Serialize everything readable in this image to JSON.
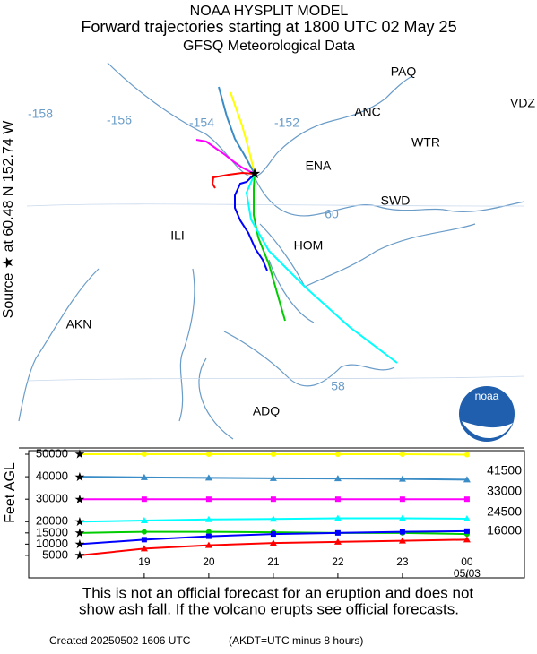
{
  "header": {
    "lines": [
      "NOAA HYSPLIT MODEL",
      "Forward trajectories starting at 1800 UTC 02 May 25",
      "GFSQ Meteorological Data"
    ]
  },
  "side_label": "Source ★ at 60.48 N 152.74 W",
  "map": {
    "places": [
      "PAQ",
      "ANC",
      "VDZ",
      "WTR",
      "ENA",
      "SWD",
      "ILI",
      "HOM",
      "AKN",
      "ADQ"
    ],
    "lon_labels": [
      "-158",
      "-156",
      "-154",
      "-152"
    ],
    "lat_labels": [
      "60",
      "58"
    ],
    "logo": "noaa"
  },
  "chart_data": {
    "type": "line",
    "y_label": "Feet AGL",
    "x": [
      18,
      19,
      20,
      21,
      22,
      23,
      24
    ],
    "xlim": [
      17.21,
      24.89
    ],
    "xticks": [
      19,
      20,
      21,
      22,
      23,
      {
        "value": 24,
        "label": "00"
      }
    ],
    "x_date_label": "05/03",
    "ylim": [
      -5000,
      51600
    ],
    "yticks": [
      5000,
      10000,
      15000,
      20000,
      30000,
      40000,
      50000
    ],
    "right_labels": [
      "41500",
      "33000",
      "24500",
      "16000"
    ],
    "series": [
      {
        "color": "#ffff00",
        "marker": "circle",
        "values": [
          50000,
          50000,
          50000,
          50000,
          50000,
          50000,
          49800
        ]
      },
      {
        "color": "#3a8cc6",
        "marker": "triangle",
        "values": [
          40000,
          39700,
          39500,
          39300,
          39200,
          39000,
          38700
        ]
      },
      {
        "color": "#ff00ff",
        "marker": "square",
        "values": [
          30000,
          30000,
          30000,
          30000,
          30000,
          30000,
          30000
        ]
      },
      {
        "color": "#00ffff",
        "marker": "triangle",
        "values": [
          20000,
          20500,
          21000,
          21200,
          21500,
          21500,
          21300
        ]
      },
      {
        "color": "#00cc00",
        "marker": "circle",
        "values": [
          15000,
          15500,
          15500,
          15300,
          15000,
          15000,
          14500
        ]
      },
      {
        "color": "#0000ff",
        "marker": "square",
        "values": [
          10000,
          12000,
          13500,
          14500,
          15000,
          15500,
          15800
        ]
      },
      {
        "color": "#ff0000",
        "marker": "triangle",
        "values": [
          5000,
          8000,
          9500,
          10500,
          11000,
          11500,
          12000
        ]
      }
    ]
  },
  "footer": {
    "lines": [
      "This is not an official forecast for an eruption and does not",
      "show ash fall. If the volcano erupts see official forecasts."
    ],
    "created": "Created 20250502 1606 UTC",
    "note": "(AKDT=UTC minus 8 hours)"
  }
}
